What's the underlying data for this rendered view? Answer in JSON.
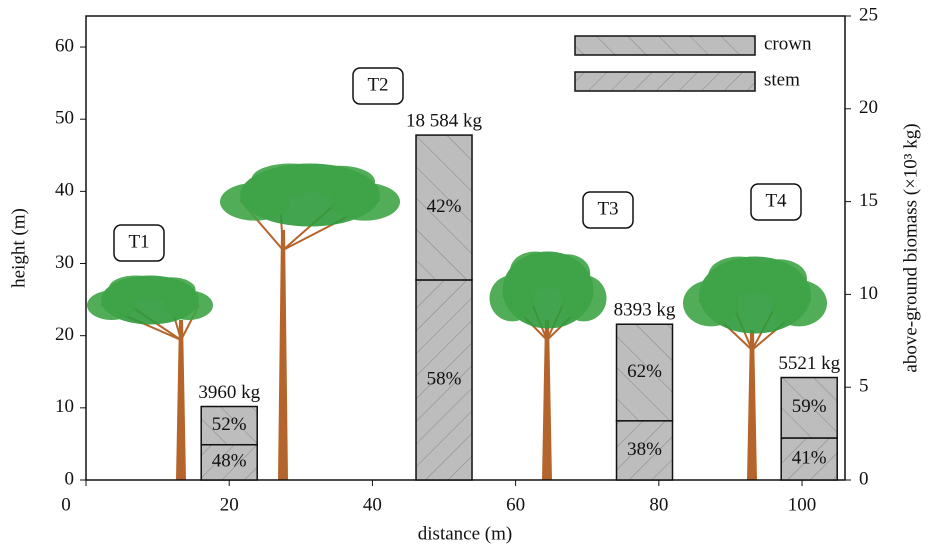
{
  "chart_data": {
    "type": "bar",
    "xlabel": "distance (m)",
    "ylabel": "height (m)",
    "y2label": "above-ground biomass (×10³ kg)",
    "xlim": [
      0,
      106
    ],
    "xticks": [
      0,
      20,
      40,
      60,
      80,
      100
    ],
    "ylim": [
      0,
      64.3
    ],
    "yticks": [
      0,
      10,
      20,
      30,
      40,
      50,
      60
    ],
    "y2lim": [
      0,
      25
    ],
    "y2ticks": [
      0,
      5,
      10,
      15,
      20,
      25
    ],
    "annotations": [
      "T1",
      "T2",
      "T3",
      "T4"
    ],
    "x": [
      20,
      50,
      78,
      101
    ],
    "totals": {
      "axis": "y2",
      "values": [
        3.96,
        18.584,
        8.393,
        5.521
      ],
      "value_labels": [
        "3960 kg",
        "18 584 kg",
        "8393 kg",
        "5521 kg"
      ]
    },
    "series": [
      {
        "name": "stem",
        "color": "#bdbdbd",
        "values": [
          48,
          58,
          38,
          41
        ],
        "value_labels": [
          "48%",
          "58%",
          "38%",
          "41%"
        ]
      },
      {
        "name": "crown",
        "color": "#bdbdbd",
        "values": [
          52,
          42,
          62,
          59
        ],
        "value_labels": [
          "52%",
          "42%",
          "62%",
          "59%"
        ]
      }
    ],
    "legend": "upper right"
  }
}
